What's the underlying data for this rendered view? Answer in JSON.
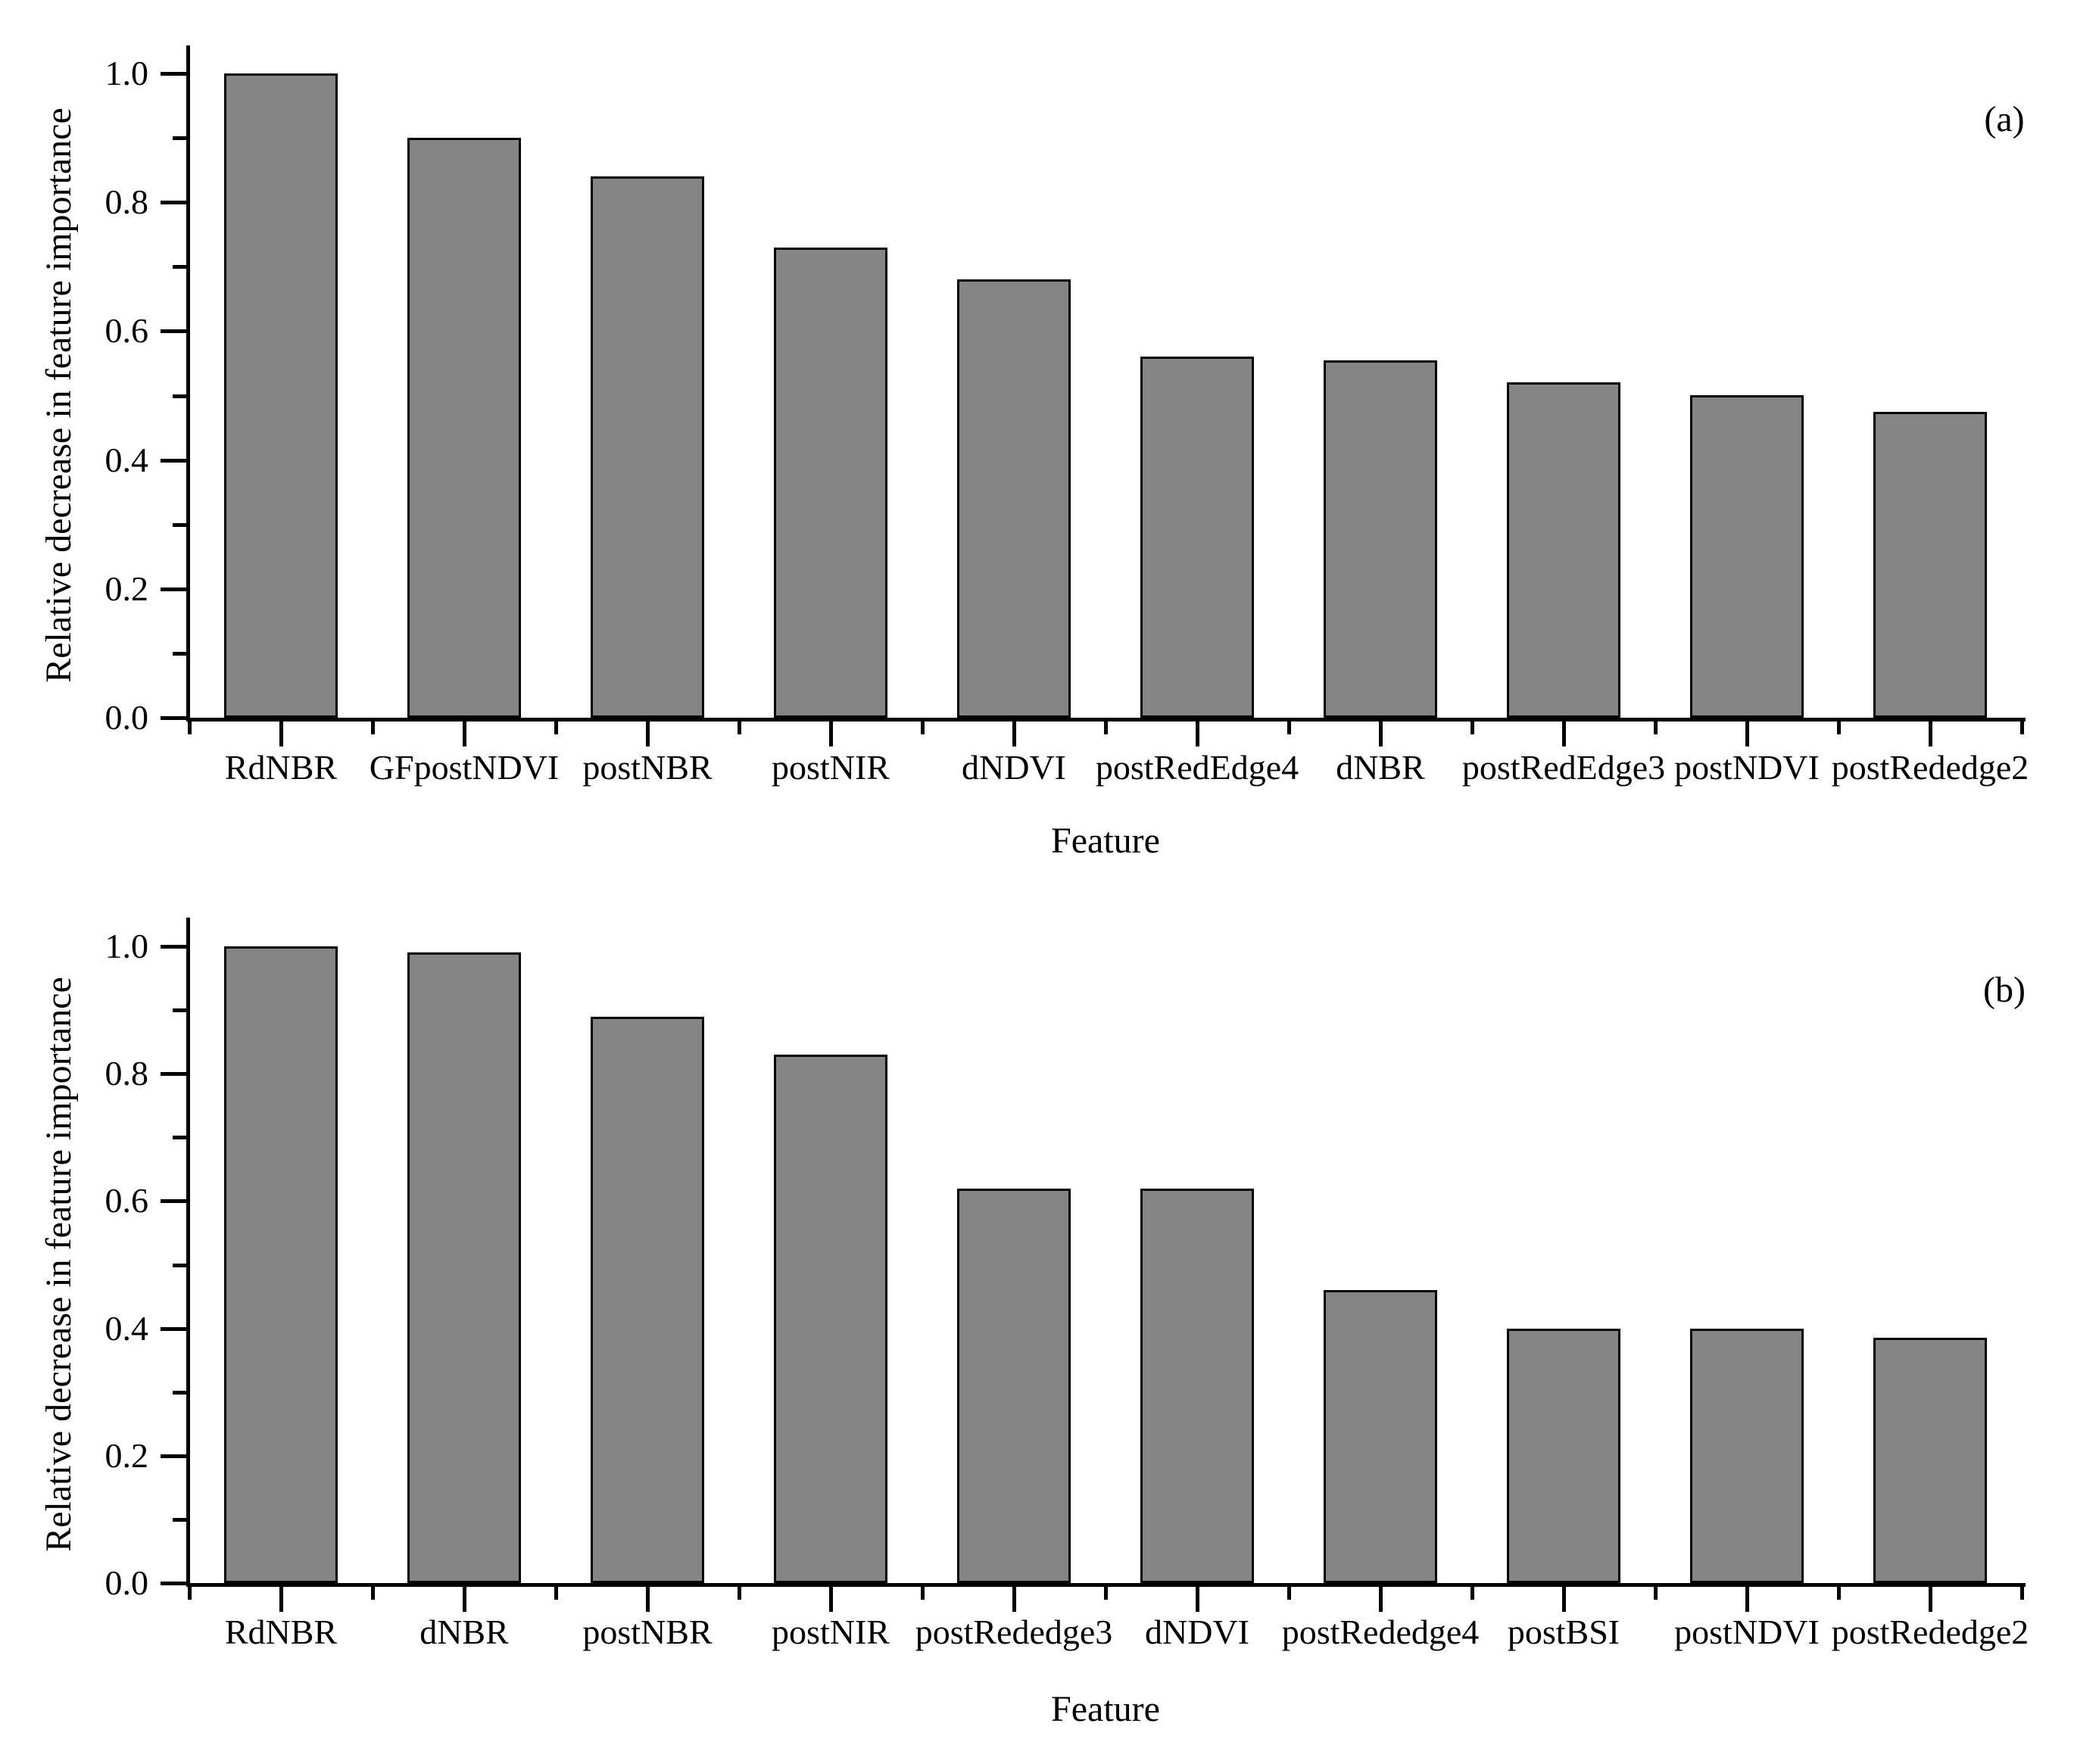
{
  "figure": {
    "background": "#ffffff",
    "text_color": "#000000"
  },
  "chart_data": [
    {
      "type": "bar",
      "panel_label": "(a)",
      "xlabel": "Feature",
      "ylabel": "Relative decrease in feature importance",
      "categories": [
        "RdNBR",
        "GFpostNDVI",
        "postNBR",
        "postNIR",
        "dNDVI",
        "postRedEdge4",
        "dNBR",
        "postRedEdge3",
        "postNDVI",
        "postRededge2"
      ],
      "values": [
        1.0,
        0.9,
        0.84,
        0.73,
        0.68,
        0.56,
        0.555,
        0.52,
        0.5,
        0.475
      ],
      "ylim": [
        0.0,
        1.0
      ],
      "ytick_labels": [
        "0.0",
        "0.2",
        "0.4",
        "0.6",
        "0.8",
        "1.0"
      ],
      "ytick_values": [
        0.0,
        0.2,
        0.4,
        0.6,
        0.8,
        1.0
      ],
      "ytick_minor_step": 0.1,
      "bar_fill": "#858585",
      "bar_border": "#000000",
      "grid": false,
      "legend": null
    },
    {
      "type": "bar",
      "panel_label": "(b)",
      "xlabel": "Feature",
      "ylabel": "Relative decrease in feature importance",
      "categories": [
        "RdNBR",
        "dNBR",
        "postNBR",
        "postNIR",
        "postRededge3",
        "dNDVI",
        "postRededge4",
        "postBSI",
        "postNDVI",
        "postRededge2"
      ],
      "values": [
        1.0,
        0.99,
        0.89,
        0.83,
        0.62,
        0.62,
        0.46,
        0.4,
        0.4,
        0.385
      ],
      "ylim": [
        0.0,
        1.0
      ],
      "ytick_labels": [
        "0.0",
        "0.2",
        "0.4",
        "0.6",
        "0.8",
        "1.0"
      ],
      "ytick_values": [
        0.0,
        0.2,
        0.4,
        0.6,
        0.8,
        1.0
      ],
      "ytick_minor_step": 0.1,
      "bar_fill": "#858585",
      "bar_border": "#000000",
      "grid": false,
      "legend": null
    }
  ]
}
